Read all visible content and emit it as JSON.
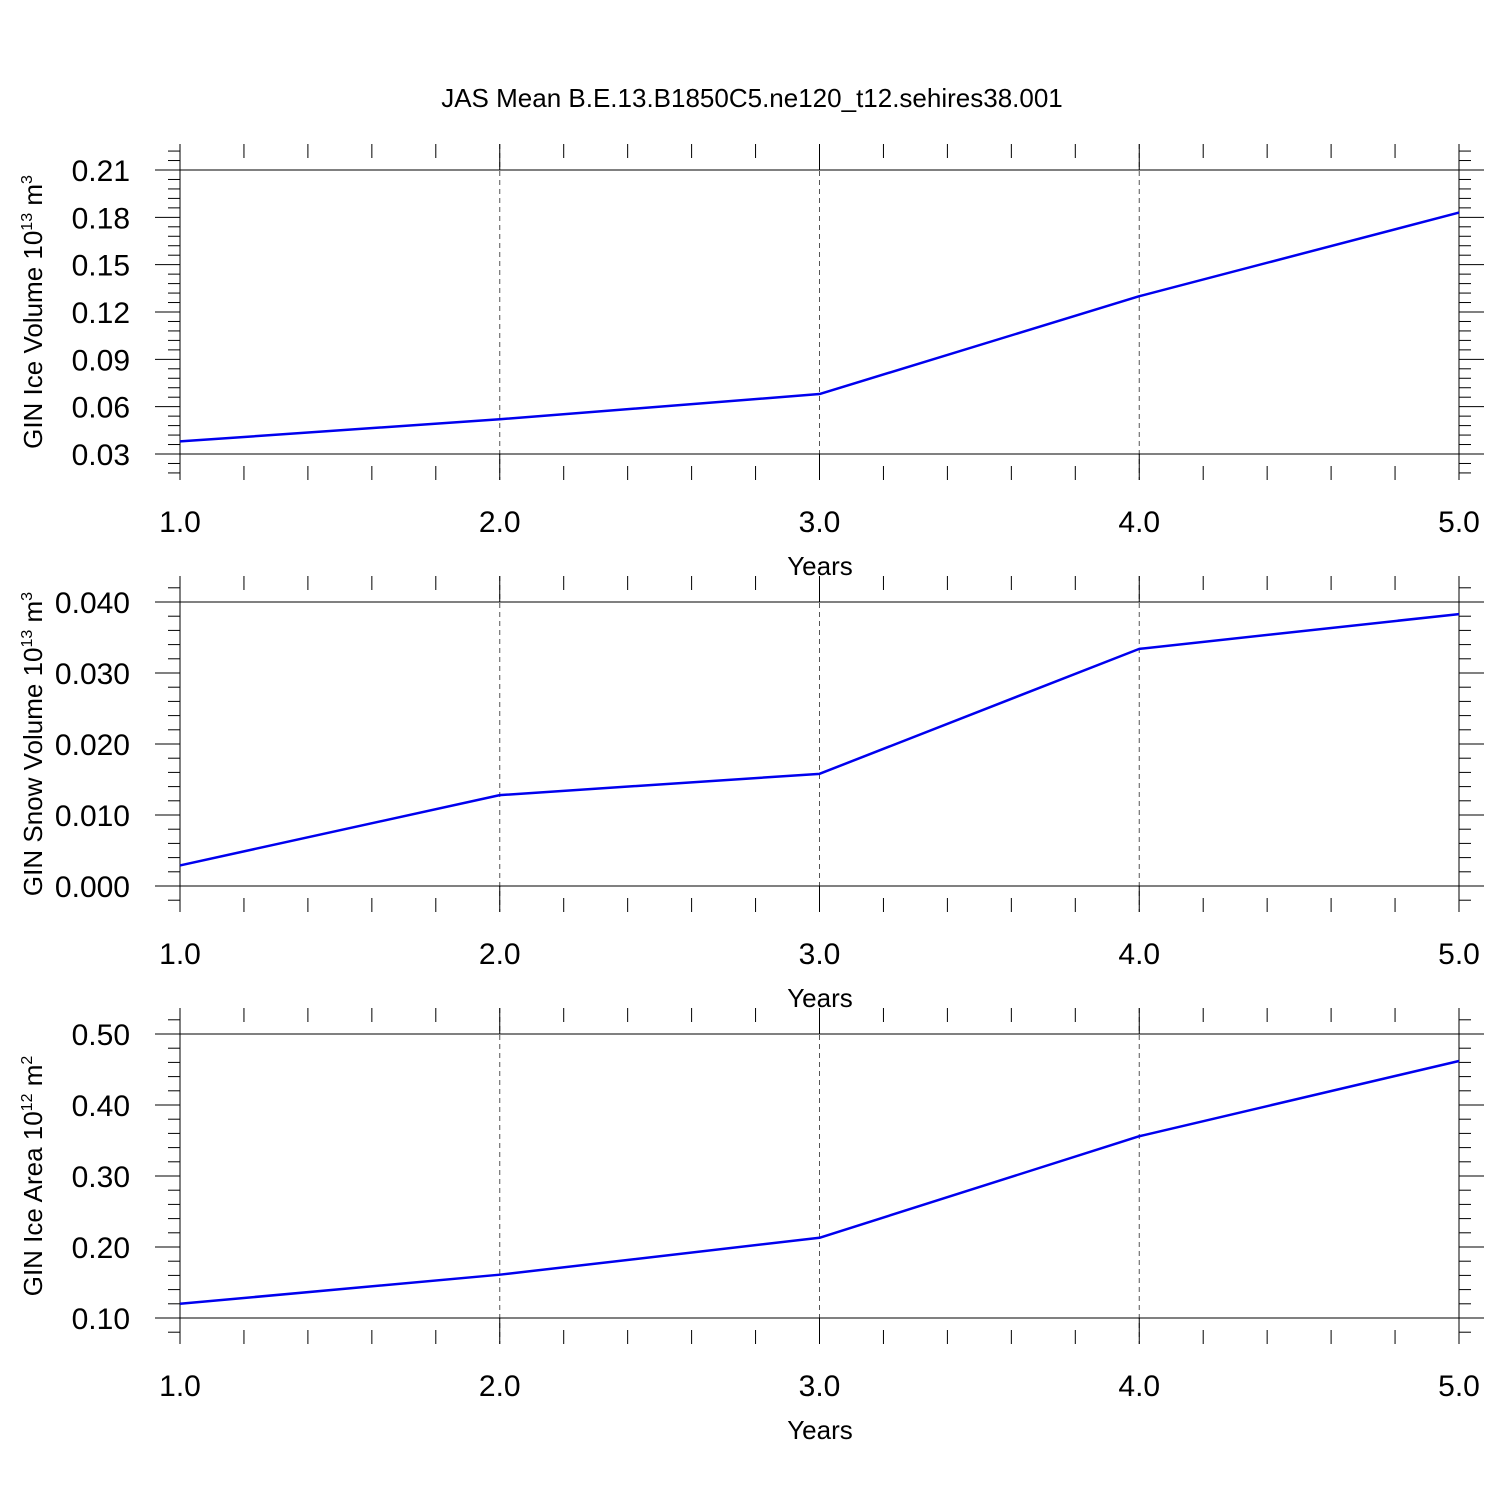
{
  "chart_data": [
    {
      "type": "line",
      "title": "JAS Mean B.E.13.B1850C5.ne120_t12.sehires38.001",
      "ylabel": "GIN Ice Volume 10",
      "ylabel_exp": "13",
      "ylabel_unit": "m",
      "ylabel_unit_exp": "3",
      "xlabel": "Years",
      "x": [
        1.0,
        2.0,
        3.0,
        4.0,
        5.0
      ],
      "xticks": [
        "1.0",
        "2.0",
        "3.0",
        "4.0",
        "5.0"
      ],
      "xlim": [
        1.0,
        5.0
      ],
      "ylim": [
        0.03,
        0.21
      ],
      "yticks": [
        "0.03",
        "0.06",
        "0.09",
        "0.12",
        "0.15",
        "0.18",
        "0.21"
      ],
      "ytick_values": [
        0.03,
        0.06,
        0.09,
        0.12,
        0.15,
        0.18,
        0.21
      ],
      "yminor_step": 0.006,
      "series": [
        {
          "name": "Ice Volume",
          "color": "#0000ee",
          "values": [
            0.038,
            0.052,
            0.068,
            0.13,
            0.183
          ]
        }
      ],
      "grid": "vertical dashed"
    },
    {
      "type": "line",
      "ylabel": "GIN Snow Volume 10",
      "ylabel_exp": "13",
      "ylabel_unit": "m",
      "ylabel_unit_exp": "3",
      "xlabel": "Years",
      "x": [
        1.0,
        2.0,
        3.0,
        4.0,
        5.0
      ],
      "xticks": [
        "1.0",
        "2.0",
        "3.0",
        "4.0",
        "5.0"
      ],
      "xlim": [
        1.0,
        5.0
      ],
      "ylim": [
        0.0,
        0.04
      ],
      "yticks": [
        "0.000",
        "0.010",
        "0.020",
        "0.030",
        "0.040"
      ],
      "ytick_values": [
        0.0,
        0.01,
        0.02,
        0.03,
        0.04
      ],
      "yminor_step": 0.002,
      "series": [
        {
          "name": "Snow Volume",
          "color": "#0000ee",
          "values": [
            0.0029,
            0.0128,
            0.0158,
            0.0334,
            0.0383
          ]
        }
      ],
      "grid": "vertical dashed"
    },
    {
      "type": "line",
      "ylabel": "GIN Ice Area 10",
      "ylabel_exp": "12",
      "ylabel_unit": "m",
      "ylabel_unit_exp": "2",
      "xlabel": "Years",
      "x": [
        1.0,
        2.0,
        3.0,
        4.0,
        5.0
      ],
      "xticks": [
        "1.0",
        "2.0",
        "3.0",
        "4.0",
        "5.0"
      ],
      "xlim": [
        1.0,
        5.0
      ],
      "ylim": [
        0.1,
        0.5
      ],
      "yticks": [
        "0.10",
        "0.20",
        "0.30",
        "0.40",
        "0.50"
      ],
      "ytick_values": [
        0.1,
        0.2,
        0.3,
        0.4,
        0.5
      ],
      "yminor_step": 0.02,
      "series": [
        {
          "name": "Ice Area",
          "color": "#0000ee",
          "values": [
            0.12,
            0.161,
            0.213,
            0.356,
            0.462
          ]
        }
      ],
      "grid": "vertical dashed"
    }
  ]
}
